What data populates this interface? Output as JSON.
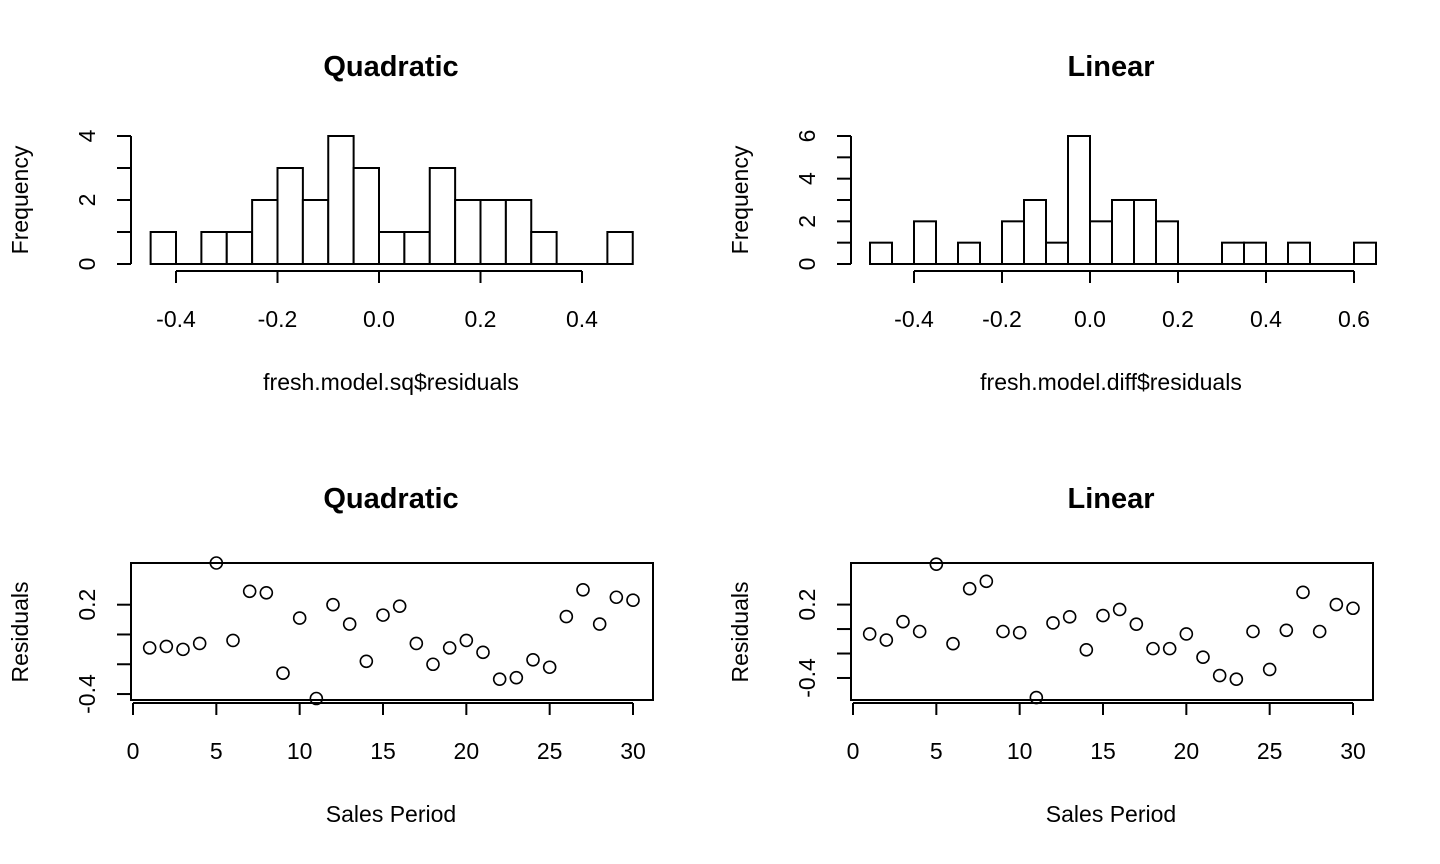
{
  "chart_data": [
    {
      "type": "histogram",
      "title": "Quadratic",
      "xlabel": "fresh.model.sq$residuals",
      "ylabel": "Frequency",
      "bin_width": 0.05,
      "bin_start": -0.45,
      "counts": [
        1,
        0,
        1,
        1,
        2,
        3,
        2,
        4,
        3,
        1,
        1,
        3,
        2,
        2,
        2,
        1,
        0,
        0,
        1
      ],
      "x_ticks": [
        -0.4,
        -0.2,
        0.0,
        0.2,
        0.4
      ],
      "x_tick_labels": [
        "-0.4",
        "-0.2",
        "0.0",
        "0.2",
        "0.4"
      ],
      "y_ticks": [
        0,
        2,
        4
      ],
      "y_tick_labels": [
        "0",
        "2",
        "4"
      ],
      "xlim": [
        -0.45,
        0.5
      ],
      "ylim": [
        0,
        4
      ]
    },
    {
      "type": "histogram",
      "title": "Linear",
      "xlabel": "fresh.model.diff$residuals",
      "ylabel": "Frequency",
      "bin_width": 0.05,
      "bin_start": -0.5,
      "counts": [
        1,
        0,
        2,
        0,
        1,
        0,
        2,
        3,
        1,
        6,
        2,
        3,
        3,
        2,
        0,
        0,
        1,
        1,
        0,
        1,
        0,
        0,
        1
      ],
      "x_ticks": [
        -0.4,
        -0.2,
        0.0,
        0.2,
        0.4,
        0.6
      ],
      "x_tick_labels": [
        "-0.4",
        "-0.2",
        "0.0",
        "0.2",
        "0.4",
        "0.6"
      ],
      "y_ticks": [
        0,
        2,
        4,
        6
      ],
      "y_tick_labels": [
        "0",
        "2",
        "4",
        "6"
      ],
      "xlim": [
        -0.5,
        0.6
      ],
      "ylim": [
        0,
        6
      ]
    },
    {
      "type": "scatter",
      "title": "Quadratic",
      "xlabel": "Sales Period",
      "ylabel": "Residuals",
      "x": [
        1,
        2,
        3,
        4,
        5,
        6,
        7,
        8,
        9,
        10,
        11,
        12,
        13,
        14,
        15,
        16,
        17,
        18,
        19,
        20,
        21,
        22,
        23,
        24,
        25,
        26,
        27,
        28,
        29,
        30
      ],
      "y": [
        -0.09,
        -0.08,
        -0.1,
        -0.06,
        0.48,
        -0.04,
        0.29,
        0.28,
        -0.26,
        0.11,
        -0.43,
        0.2,
        0.07,
        -0.18,
        0.13,
        0.19,
        -0.06,
        -0.2,
        -0.09,
        -0.04,
        -0.12,
        -0.3,
        -0.29,
        -0.17,
        -0.22,
        0.12,
        0.3,
        0.07,
        0.25,
        0.23
      ],
      "x_ticks": [
        0,
        5,
        10,
        15,
        20,
        25,
        30
      ],
      "x_tick_labels": [
        "0",
        "5",
        "10",
        "15",
        "20",
        "25",
        "30"
      ],
      "y_ticks": [
        -0.4,
        0.2
      ],
      "y_tick_labels": [
        "-0.4",
        "0.2"
      ],
      "xlim": [
        -0.2,
        31.2
      ],
      "ylim": [
        -0.44,
        0.48
      ]
    },
    {
      "type": "scatter",
      "title": "Linear",
      "xlabel": "Sales Period",
      "ylabel": "Residuals",
      "x": [
        1,
        2,
        3,
        4,
        5,
        6,
        7,
        8,
        9,
        10,
        11,
        12,
        13,
        14,
        15,
        16,
        17,
        18,
        19,
        20,
        21,
        22,
        23,
        24,
        25,
        26,
        27,
        28,
        29,
        30
      ],
      "y": [
        -0.04,
        -0.09,
        0.06,
        -0.02,
        0.53,
        -0.12,
        0.33,
        0.39,
        -0.02,
        -0.03,
        -0.56,
        0.05,
        0.1,
        -0.17,
        0.11,
        0.16,
        0.04,
        -0.16,
        -0.16,
        -0.04,
        -0.23,
        -0.38,
        -0.41,
        -0.02,
        -0.33,
        -0.01,
        0.3,
        -0.02,
        0.2,
        0.17
      ],
      "x_ticks": [
        0,
        5,
        10,
        15,
        20,
        25,
        30
      ],
      "x_tick_labels": [
        "0",
        "5",
        "10",
        "15",
        "20",
        "25",
        "30"
      ],
      "y_ticks": [
        -0.4,
        0.2
      ],
      "y_tick_labels": [
        "-0.4",
        "0.2"
      ],
      "xlim": [
        -0.2,
        31.2
      ],
      "ylim": [
        -0.58,
        0.54
      ]
    }
  ]
}
